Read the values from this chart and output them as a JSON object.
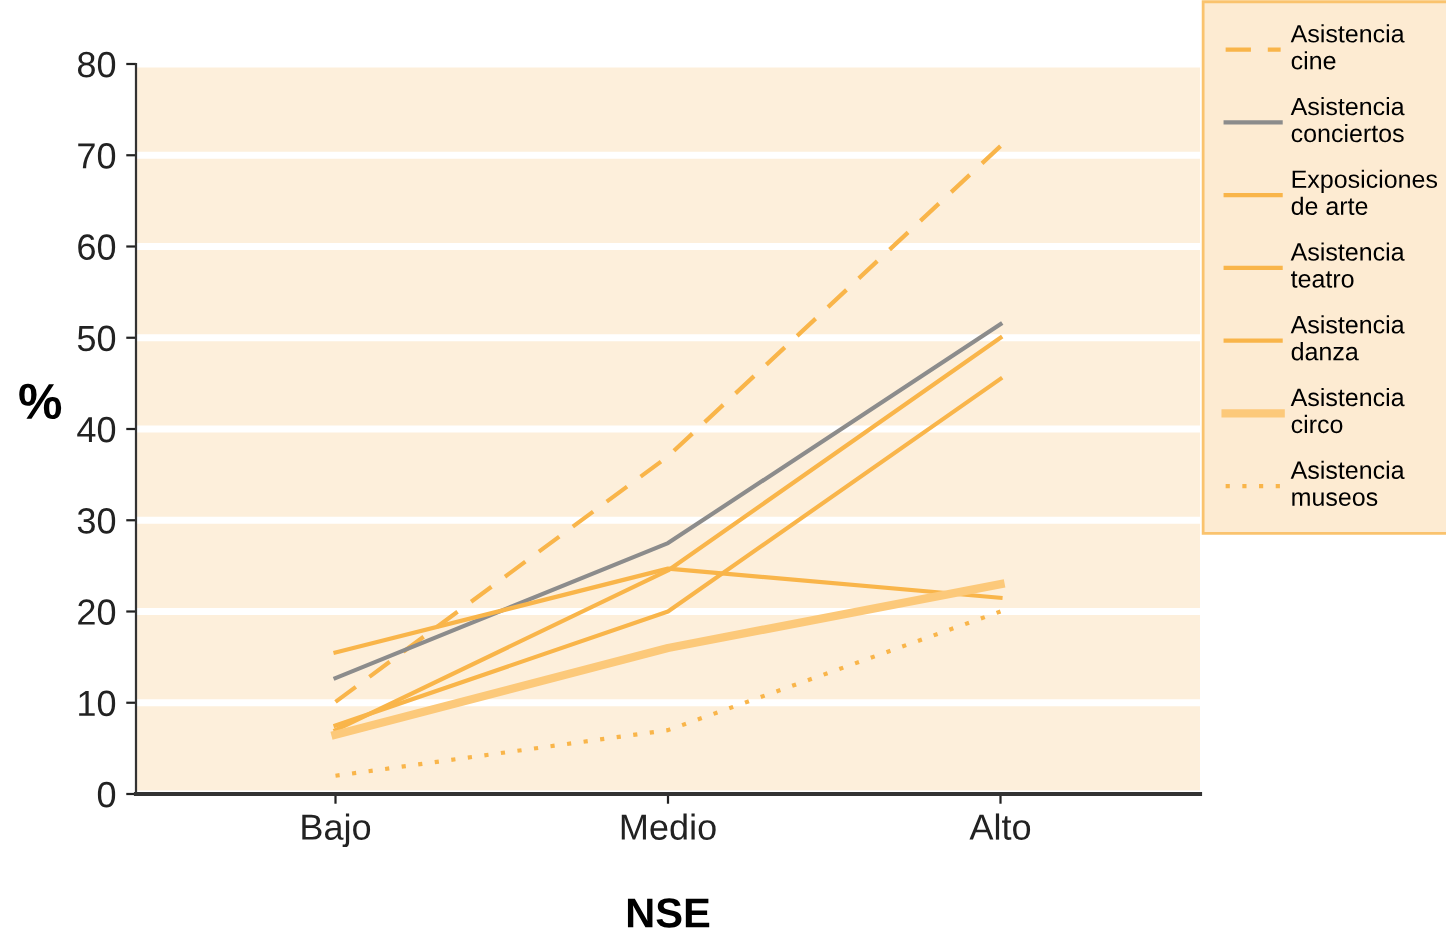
{
  "chart_data": {
    "type": "line",
    "xlabel": "NSE",
    "ylabel": "%",
    "categories": [
      "Bajo",
      "Medio",
      "Alto"
    ],
    "ylim": [
      0,
      80
    ],
    "yticks": [
      0,
      10,
      20,
      30,
      40,
      50,
      60,
      70,
      80
    ],
    "grid": "y",
    "legend": "right",
    "series": [
      {
        "name": "Asistencia cine",
        "color": "#f9b54a",
        "line_style": "dashed",
        "values": [
          10.1,
          37,
          71
        ]
      },
      {
        "name": "Asistencia conciertos",
        "color": "#8c8c8c",
        "values": [
          12.7,
          27.5,
          51.5
        ]
      },
      {
        "name": "Exposiciones de arte",
        "color": "#f9b54a",
        "values": [
          15.5,
          24.7,
          21.5
        ]
      },
      {
        "name": "Asistencia teatro",
        "color": "#f9b54a",
        "values": [
          7,
          24.5,
          50
        ]
      },
      {
        "name": "Asistencia danza",
        "color": "#f9b54a",
        "values": [
          7.5,
          20,
          45.5
        ]
      },
      {
        "name": "Asistencia circo",
        "color": "#fcc97a",
        "values": [
          6.5,
          16,
          23
        ]
      },
      {
        "name": "Asistencia museos",
        "color": "#f9b54a",
        "line_style": "dotted",
        "values": [
          2,
          7,
          20
        ]
      }
    ]
  }
}
